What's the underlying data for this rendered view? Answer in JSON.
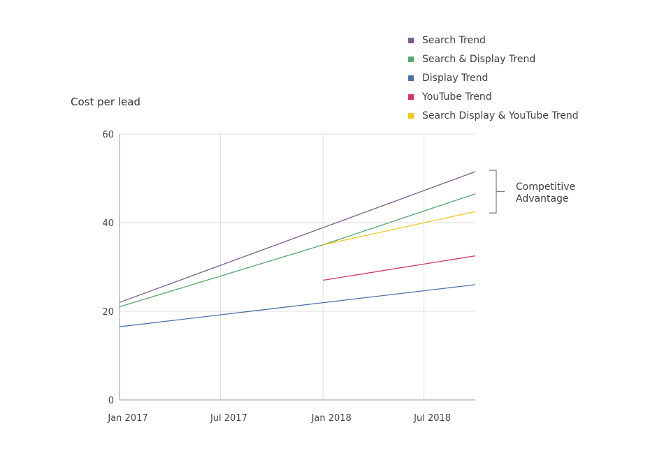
{
  "chart_data": {
    "type": "line",
    "title": "",
    "xlabel": "",
    "ylabel": "Cost per lead",
    "x_ticks": [
      "Jan 2017",
      "Jul 2017",
      "Jan 2018",
      "Jul 2018"
    ],
    "y_ticks": [
      0,
      20,
      40,
      60
    ],
    "xlim": [
      "2017-01-01",
      "2018-10-01"
    ],
    "ylim": [
      0,
      60
    ],
    "grid": true,
    "legend_position": "top-right",
    "series": [
      {
        "name": "Search Trend",
        "color": "#7b5a8e",
        "x": [
          "2017-01-01",
          "2018-10-01"
        ],
        "y": [
          22,
          51.5
        ]
      },
      {
        "name": "Search & Display Trend",
        "color": "#55a86a",
        "x": [
          "2017-01-01",
          "2018-01-01",
          "2018-10-01"
        ],
        "y": [
          21,
          35,
          46.5
        ]
      },
      {
        "name": "Display Trend",
        "color": "#4a73a8",
        "x": [
          "2017-01-01",
          "2018-10-01"
        ],
        "y": [
          16.5,
          26
        ]
      },
      {
        "name": "YouTube Trend",
        "color": "#d6336c",
        "x": [
          "2018-01-01",
          "2018-10-01"
        ],
        "y": [
          27,
          32.5
        ]
      },
      {
        "name": "Search Display & YouTube Trend",
        "color": "#f5c518",
        "x": [
          "2018-01-01",
          "2018-10-01"
        ],
        "y": [
          35,
          42.5
        ]
      }
    ],
    "annotations": [
      {
        "text": [
          "Competitive",
          "Advantage"
        ],
        "y_range": [
          42.5,
          51.5
        ]
      }
    ]
  }
}
